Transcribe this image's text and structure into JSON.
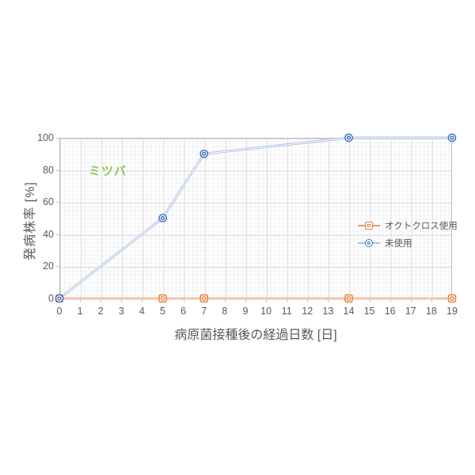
{
  "chart_data": {
    "type": "line",
    "annotation": {
      "text": "ミツバ",
      "color": "#8dc457"
    },
    "xlabel": "病原菌接種後の経過日数 [日]",
    "ylabel": "発病株率 [%]",
    "xlim": [
      0,
      19
    ],
    "ylim": [
      0,
      100
    ],
    "x_ticks": [
      0,
      1,
      2,
      3,
      4,
      5,
      6,
      7,
      8,
      9,
      10,
      11,
      12,
      13,
      14,
      15,
      16,
      17,
      18,
      19
    ],
    "y_ticks": [
      0,
      20,
      40,
      60,
      80,
      100
    ],
    "grid": {
      "major": true,
      "minor": true
    },
    "legend_position": "inside-right",
    "series": [
      {
        "name": "オクトクロス使用",
        "marker": "square",
        "marker_color": "#ED7D31",
        "line_color": "#DBA079",
        "x": [
          0,
          5,
          7,
          14,
          19
        ],
        "values": [
          0,
          0,
          0,
          0,
          0
        ]
      },
      {
        "name": "未使用",
        "marker": "circle",
        "marker_color": "#4472C4",
        "line_color": "#ABC0E4",
        "x": [
          0,
          5,
          7,
          14,
          19
        ],
        "values": [
          0,
          50,
          90,
          100,
          100
        ]
      }
    ]
  },
  "colors": {
    "tick_label": "#595959",
    "axis_title": "#595959",
    "grid_major": "#d9d9d9",
    "grid_minor": "#f1f1f1",
    "plot_border": "#bfbfbf",
    "background": "#ffffff"
  }
}
